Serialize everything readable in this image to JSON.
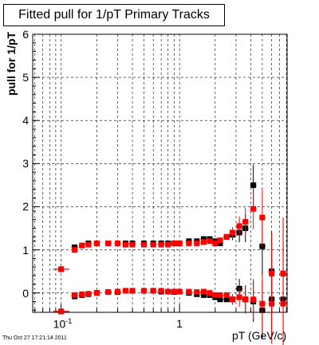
{
  "title": "Fitted pull for 1/pT  Primary Tracks",
  "timestamp": "Thu Oct 27 17:21:14 2011",
  "chart_data": {
    "type": "scatter",
    "xlabel": "pT (GeV/c)",
    "ylabel": "pull for 1/pT",
    "x_scale": "log",
    "xlim": [
      0.0575,
      8.1
    ],
    "ylim": [
      -0.45,
      6.0
    ],
    "grid": true,
    "y_ticks": [
      "0",
      "1",
      "2",
      "3",
      "4",
      "5",
      "6"
    ],
    "y_tick_values": [
      0,
      1,
      2,
      3,
      4,
      5,
      6
    ],
    "x_ticks": [
      {
        "label": "10",
        "sup": "-1",
        "value": 0.1
      },
      {
        "label": "1",
        "sup": "",
        "value": 1
      }
    ],
    "colors": {
      "black_series": "#000000",
      "red_series": "#ff0000"
    },
    "series": [
      {
        "color": "#000000",
        "marker": "square",
        "x": [
          0.1,
          0.1,
          0.13,
          0.13,
          0.15,
          0.15,
          0.17,
          0.17,
          0.2,
          0.2,
          0.25,
          0.25,
          0.3,
          0.3,
          0.35,
          0.35,
          0.4,
          0.4,
          0.5,
          0.5,
          0.6,
          0.6,
          0.7,
          0.7,
          0.8,
          0.8,
          0.9,
          0.9,
          1.0,
          1.0,
          1.2,
          1.2,
          1.4,
          1.4,
          1.6,
          1.6,
          1.8,
          1.8,
          2.0,
          2.0,
          2.2,
          2.2,
          2.5,
          2.5,
          2.8,
          2.8,
          3.2,
          3.2,
          3.6,
          3.6,
          4.2,
          4.2,
          5.0,
          5.0,
          6.0,
          6.0,
          7.5,
          7.5
        ],
        "y": [
          0.55,
          -0.43,
          1.06,
          -0.08,
          1.1,
          -0.05,
          1.15,
          -0.03,
          1.15,
          0.0,
          1.15,
          0.02,
          1.15,
          0.02,
          1.15,
          0.05,
          1.15,
          0.05,
          1.15,
          0.05,
          1.15,
          0.05,
          1.15,
          0.03,
          1.15,
          0.03,
          1.15,
          0.02,
          1.15,
          0.03,
          1.2,
          0.0,
          1.2,
          -0.03,
          1.25,
          -0.05,
          1.25,
          -0.05,
          1.2,
          -0.1,
          1.15,
          -0.15,
          1.3,
          -0.15,
          1.35,
          -0.15,
          1.4,
          0.1,
          1.5,
          -0.15,
          2.5,
          -0.2,
          1.08,
          -0.4,
          0.5,
          -0.15,
          0.45,
          -0.15
        ]
      },
      {
        "color": "#ff0000",
        "marker": "square",
        "x": [
          0.1,
          0.1,
          0.13,
          0.13,
          0.15,
          0.15,
          0.17,
          0.17,
          0.2,
          0.2,
          0.25,
          0.25,
          0.3,
          0.3,
          0.35,
          0.35,
          0.4,
          0.4,
          0.5,
          0.5,
          0.6,
          0.6,
          0.7,
          0.7,
          0.8,
          0.8,
          0.9,
          0.9,
          1.0,
          1.0,
          1.2,
          1.2,
          1.4,
          1.4,
          1.6,
          1.6,
          1.8,
          1.8,
          2.0,
          2.0,
          2.2,
          2.2,
          2.5,
          2.5,
          2.8,
          2.8,
          3.2,
          3.2,
          3.6,
          3.6,
          4.2,
          4.2,
          5.0,
          5.0,
          6.0,
          6.0,
          7.5,
          7.5
        ],
        "y": [
          0.55,
          -0.43,
          1.0,
          -0.05,
          1.1,
          -0.03,
          1.12,
          -0.02,
          1.15,
          0.0,
          1.15,
          0.02,
          1.15,
          0.03,
          1.12,
          0.05,
          1.12,
          0.05,
          1.12,
          0.05,
          1.12,
          0.05,
          1.12,
          0.05,
          1.12,
          0.03,
          1.15,
          0.03,
          1.15,
          0.03,
          1.15,
          0.03,
          1.15,
          0.02,
          1.18,
          0.03,
          1.2,
          0.0,
          1.15,
          -0.05,
          1.22,
          -0.05,
          1.3,
          -0.05,
          1.4,
          -0.15,
          1.55,
          -0.1,
          1.65,
          -0.15,
          1.95,
          -0.15,
          1.75,
          -0.25,
          0.45,
          -0.25,
          0.45,
          -0.25
        ]
      }
    ]
  }
}
